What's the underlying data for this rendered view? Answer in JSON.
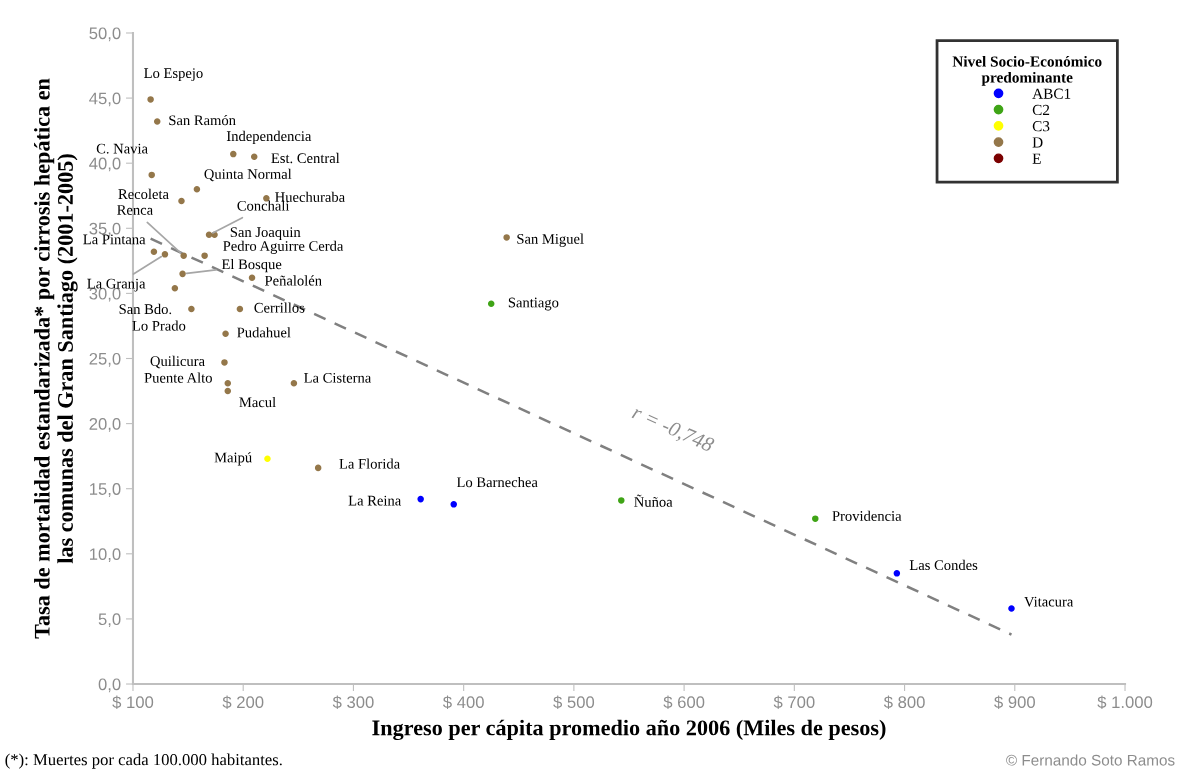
{
  "chart_data": {
    "type": "scatter",
    "xlabel": "Ingreso per cápita promedio año 2006 (Miles de pesos)",
    "ylabel": "Tasa de mortalidad estandarizada* por cirrosis hepática en\nlas comunas del Gran Santiago (2001-2005)",
    "legend_title": "Nivel Socio-Económico\npredominante",
    "legend": "top right",
    "grid": false,
    "marker": "circle",
    "xlim": [
      100,
      1000
    ],
    "ylim": [
      0,
      50
    ],
    "xticks": [
      {
        "value": 100,
        "label": "$ 100"
      },
      {
        "value": 200,
        "label": "$ 200"
      },
      {
        "value": 300,
        "label": "$ 300"
      },
      {
        "value": 400,
        "label": "$ 400"
      },
      {
        "value": 500,
        "label": "$ 500"
      },
      {
        "value": 600,
        "label": "$ 600"
      },
      {
        "value": 700,
        "label": "$ 700"
      },
      {
        "value": 800,
        "label": "$ 800"
      },
      {
        "value": 900,
        "label": "$ 900"
      },
      {
        "value": 1000,
        "label": "$ 1.000"
      }
    ],
    "yticks": [
      {
        "value": 0,
        "label": "0,0"
      },
      {
        "value": 5,
        "label": "5,0"
      },
      {
        "value": 10,
        "label": "10,0"
      },
      {
        "value": 15,
        "label": "15,0"
      },
      {
        "value": 20,
        "label": "20,0"
      },
      {
        "value": 25,
        "label": "25,0"
      },
      {
        "value": 30,
        "label": "30,0"
      },
      {
        "value": 35,
        "label": "35,0"
      },
      {
        "value": 40,
        "label": "40,0"
      },
      {
        "value": 45,
        "label": "45,0"
      },
      {
        "value": 50,
        "label": "50,0"
      }
    ],
    "series": [
      {
        "name": "ABC1",
        "color": "#0000ff",
        "x": [
          361,
          391,
          793,
          897
        ],
        "values": [
          14.2,
          13.8,
          8.5,
          5.8
        ]
      },
      {
        "name": "C2",
        "color": "#3fa416",
        "x": [
          425,
          543,
          719
        ],
        "values": [
          29.2,
          14.1,
          12.7
        ]
      },
      {
        "name": "C3",
        "color": "#ffff00",
        "x": [
          222
        ],
        "values": [
          17.3
        ]
      },
      {
        "name": "D",
        "color": "#94774a",
        "x": [
          116,
          122,
          191,
          210,
          117,
          158,
          144,
          221,
          169,
          174,
          439,
          119,
          129,
          146,
          165,
          145,
          208,
          138,
          153,
          197,
          184,
          183,
          186,
          246,
          186,
          268
        ],
        "values": [
          44.9,
          43.2,
          40.7,
          40.5,
          39.1,
          38.0,
          37.1,
          37.3,
          34.5,
          34.5,
          34.3,
          33.2,
          33.0,
          32.9,
          32.9,
          31.5,
          31.2,
          30.4,
          28.8,
          28.8,
          26.9,
          24.7,
          23.1,
          23.1,
          22.5,
          16.6
        ]
      },
      {
        "name": "E",
        "color": "#7b0000"
      },
      {
        "type": "line",
        "color": "#808080",
        "line_style": "dashed",
        "marker": "none",
        "x": [
          116,
          897
        ],
        "values": [
          34.2,
          3.8
        ]
      }
    ],
    "annotations": [
      {
        "text": "Lo Espejo",
        "x": 116,
        "y": 44.9
      },
      {
        "text": "San Ramón",
        "x": 122,
        "y": 43.2
      },
      {
        "text": "Independencia",
        "x": 191,
        "y": 40.7
      },
      {
        "text": "Est. Central",
        "x": 210,
        "y": 40.5
      },
      {
        "text": "C. Navia",
        "x": 117,
        "y": 39.1
      },
      {
        "text": "Quinta Normal",
        "x": 158,
        "y": 38.0
      },
      {
        "text": "Recoleta",
        "x": 144,
        "y": 37.1
      },
      {
        "text": "Huechuraba",
        "x": 221,
        "y": 37.3
      },
      {
        "text": "Conchali",
        "x": 169,
        "y": 34.5
      },
      {
        "text": "San Joaquin",
        "x": 174,
        "y": 34.5
      },
      {
        "text": "San Miguel",
        "x": 439,
        "y": 34.3
      },
      {
        "text": "La Pintana",
        "x": 119,
        "y": 33.2
      },
      {
        "text": "La Granja",
        "x": 129,
        "y": 33.0
      },
      {
        "text": "Renca",
        "x": 146,
        "y": 32.9
      },
      {
        "text": "Pedro Aguirre Cerda",
        "x": 165,
        "y": 32.9
      },
      {
        "text": "El Bosque",
        "x": 145,
        "y": 31.5
      },
      {
        "text": "Peñalolén",
        "x": 208,
        "y": 31.2
      },
      {
        "text": "San Bdo.",
        "x": 138,
        "y": 30.4
      },
      {
        "text": "Lo Prado",
        "x": 153,
        "y": 28.8
      },
      {
        "text": "Cerrillos",
        "x": 197,
        "y": 28.8
      },
      {
        "text": "Santiago",
        "x": 425,
        "y": 29.2
      },
      {
        "text": "Pudahuel",
        "x": 184,
        "y": 26.9
      },
      {
        "text": "Quilicura",
        "x": 183,
        "y": 24.7
      },
      {
        "text": "Puente Alto",
        "x": 186,
        "y": 23.1
      },
      {
        "text": "La Cisterna",
        "x": 246,
        "y": 23.1
      },
      {
        "text": "Macul",
        "x": 186,
        "y": 22.5
      },
      {
        "text": "Maipú",
        "x": 222,
        "y": 17.3
      },
      {
        "text": "La Florida",
        "x": 268,
        "y": 16.6
      },
      {
        "text": "La Reina",
        "x": 361,
        "y": 14.2
      },
      {
        "text": "Lo Barnechea",
        "x": 391,
        "y": 13.8
      },
      {
        "text": "Ñuñoa",
        "x": 543,
        "y": 14.1
      },
      {
        "text": "Providencia",
        "x": 719,
        "y": 12.7
      },
      {
        "text": "Las Condes",
        "x": 793,
        "y": 8.5
      },
      {
        "text": "Vitacura",
        "x": 897,
        "y": 5.8
      },
      "r = -0,748",
      "(*): Muertes por cada 100.000 habitantes.",
      "© Fernando Soto Ramos"
    ]
  }
}
